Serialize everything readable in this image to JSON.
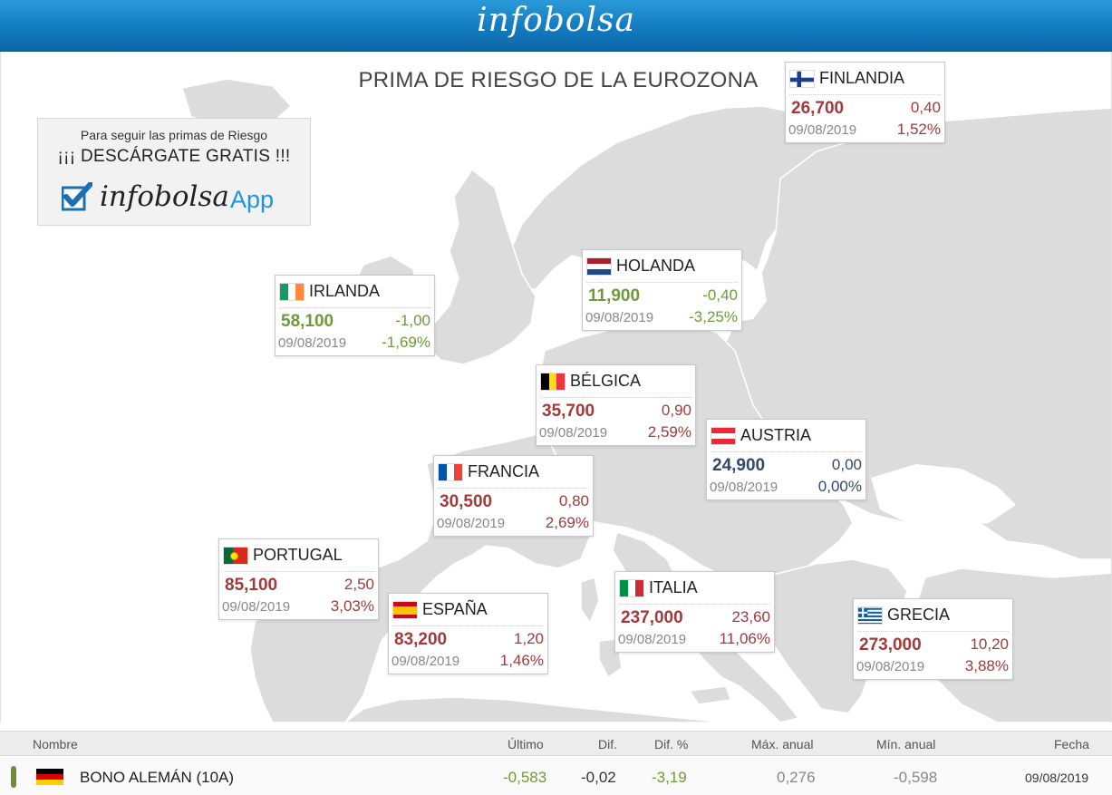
{
  "header": {
    "logo": "infobolsa"
  },
  "map": {
    "title": "PRIMA DE RIESGO DE LA EUROZONA",
    "promo": {
      "line1": "Para seguir las primas de Riesgo",
      "line2": "¡¡¡ DESCÁRGATE GRATIS !!!",
      "brand": "infobolsa",
      "app": "App"
    },
    "cards": [
      {
        "name": "FINLANDIA",
        "value": "26,700",
        "dif": "0,40",
        "date": "09/08/2019",
        "pct": "1,52%"
      },
      {
        "name": "HOLANDA",
        "value": "11,900",
        "dif": "-0,40",
        "date": "09/08/2019",
        "pct": "-3,25%"
      },
      {
        "name": "IRLANDA",
        "value": "58,100",
        "dif": "-1,00",
        "date": "09/08/2019",
        "pct": "-1,69%"
      },
      {
        "name": "BÉLGICA",
        "value": "35,700",
        "dif": "0,90",
        "date": "09/08/2019",
        "pct": "2,59%"
      },
      {
        "name": "AUSTRIA",
        "value": "24,900",
        "dif": "0,00",
        "date": "09/08/2019",
        "pct": "0,00%"
      },
      {
        "name": "FRANCIA",
        "value": "30,500",
        "dif": "0,80",
        "date": "09/08/2019",
        "pct": "2,69%"
      },
      {
        "name": "PORTUGAL",
        "value": "85,100",
        "dif": "2,50",
        "date": "09/08/2019",
        "pct": "3,03%"
      },
      {
        "name": "ESPAÑA",
        "value": "83,200",
        "dif": "1,20",
        "date": "09/08/2019",
        "pct": "1,46%"
      },
      {
        "name": "ITALIA",
        "value": "237,000",
        "dif": "23,60",
        "date": "09/08/2019",
        "pct": "11,06%"
      },
      {
        "name": "GRECIA",
        "value": "273,000",
        "dif": "10,20",
        "date": "09/08/2019",
        "pct": "3,88%"
      }
    ]
  },
  "colors": {
    "up": "#a33a3a",
    "down": "#6f9a3c",
    "flat": "#2f4a6e",
    "header": "#137bc0",
    "app": "#1d95e0"
  },
  "table": {
    "headers": {
      "name": "Nombre",
      "last": "Último",
      "dif": "Dif.",
      "dif_pct": "Dif. %",
      "max": "Máx. anual",
      "min": "Mín. anual",
      "date": "Fecha"
    },
    "row": {
      "name": "BONO ALEMÁN (10A)",
      "last": "-0,583",
      "dif": "-0,02",
      "dif_pct": "-3,19",
      "max": "0,276",
      "min": "-0,598",
      "date": "09/08/2019"
    }
  }
}
